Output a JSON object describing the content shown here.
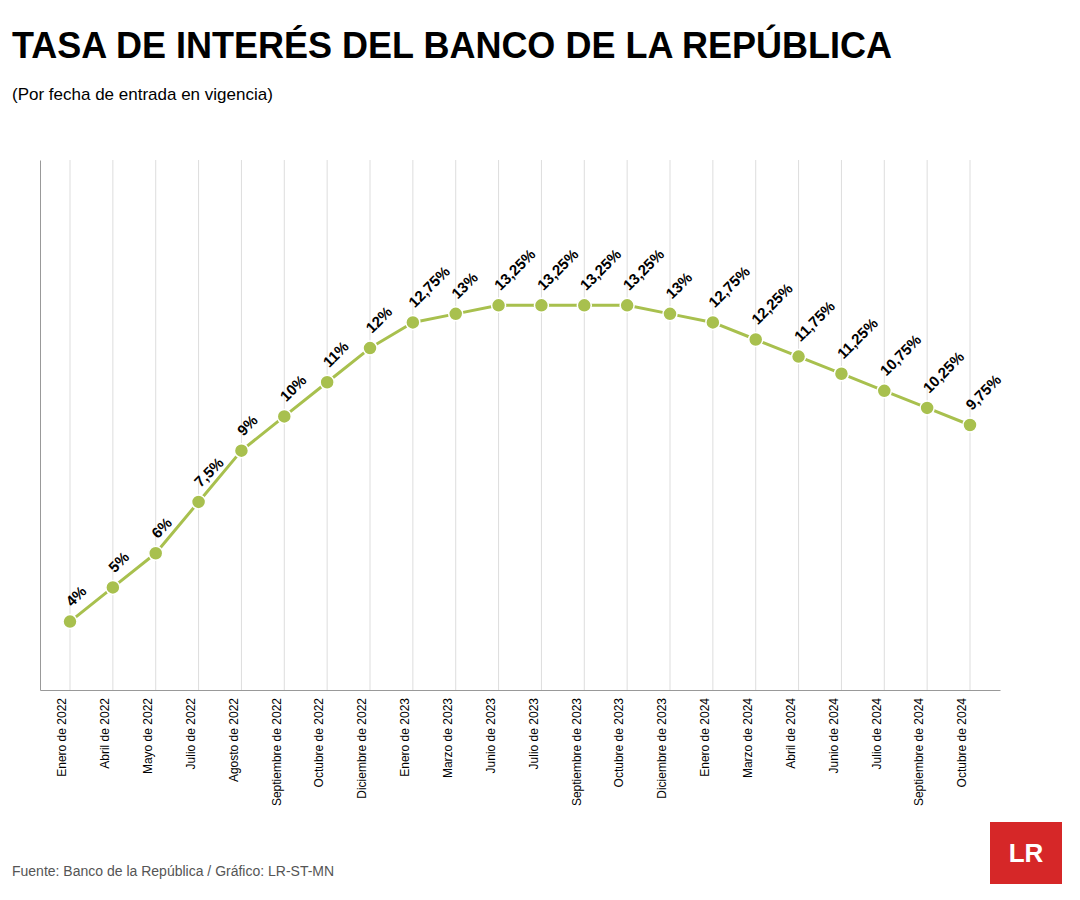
{
  "chart_data": {
    "type": "line",
    "title": "TASA DE INTERÉS DEL BANCO DE LA REPÚBLICA",
    "subtitle": "(Por fecha de entrada en vigencia)",
    "source": "Fuente: Banco de la República / Gráfico: LR-ST-MN",
    "annotations": [
      "LR"
    ],
    "categories": [
      "Enero de 2022",
      "Abril de 2022",
      "Mayo de 2022",
      "Julio de 2022",
      "Agosto de 2022",
      "Septiembre de 2022",
      "Octubre de 2022",
      "Diciembre de 2022",
      "Enero de 2023",
      "Marzo de 2023",
      "Junio de 2023",
      "Julio de 2023",
      "Septiembre de 2023",
      "Octubre de 2023",
      "Diciembre de 2023",
      "Enero de 2024",
      "Marzo de 2024",
      "Abril de 2024",
      "Junio de 2024",
      "Julio de 2024",
      "Septiembre de 2024",
      "Octubre de 2024"
    ],
    "values": [
      4.0,
      5.0,
      6.0,
      7.5,
      9.0,
      10.0,
      11.0,
      12.0,
      12.75,
      13.0,
      13.25,
      13.25,
      13.25,
      13.25,
      13.0,
      12.75,
      12.25,
      11.75,
      11.25,
      10.75,
      10.25,
      9.75
    ],
    "value_labels": [
      "4%",
      "5%",
      "6%",
      "7,5%",
      "9%",
      "10%",
      "11%",
      "12%",
      "12,75%",
      "13%",
      "13,25%",
      "13,25%",
      "13,25%",
      "13,25%",
      "13%",
      "12,75%",
      "12,25%",
      "11,75%",
      "11,25%",
      "10,75%",
      "10,25%",
      "9,75%"
    ],
    "color": "#a8c04e",
    "marker": "circle",
    "line_style": "solid",
    "ylim": [
      2.0,
      17.5
    ],
    "grid": true,
    "data_labels": true,
    "tick_labels": "x"
  }
}
